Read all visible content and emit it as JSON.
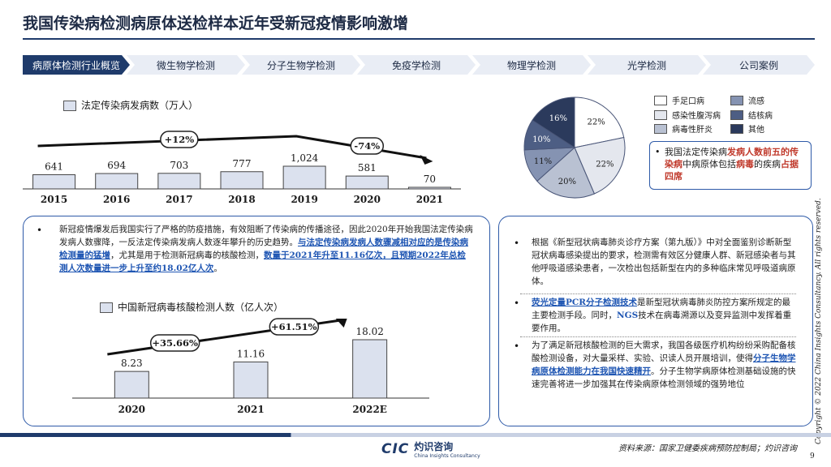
{
  "title": "我国传染病检测病原体送检样本近年受新冠疫情影响激增",
  "tabs": [
    {
      "label": "病原体检测行业概览",
      "active": true
    },
    {
      "label": "微生物学检测",
      "active": false
    },
    {
      "label": "分子生物学检测",
      "active": false
    },
    {
      "label": "免疫学检测",
      "active": false
    },
    {
      "label": "物理学检测",
      "active": false
    },
    {
      "label": "光学检测",
      "active": false
    },
    {
      "label": "公司案例",
      "active": false
    }
  ],
  "colors": {
    "accent": "#1f3b6b",
    "bar_fill": "#dbe1ee",
    "highlight": "#1f56b3",
    "card_border": "#2e5aa8"
  },
  "chart_data": [
    {
      "type": "bar",
      "legend": "法定传染病发病数（万人）",
      "categories": [
        "2015",
        "2016",
        "2017",
        "2018",
        "2019",
        "2020",
        "2021"
      ],
      "values": [
        641,
        694,
        703,
        777,
        1024,
        581,
        70
      ],
      "value_labels": [
        "641",
        "694",
        "703",
        "777",
        "1,024",
        "581",
        "70"
      ],
      "annotations": [
        "+12%",
        "-74%"
      ]
    },
    {
      "type": "bar",
      "legend": "中国新冠病毒核酸检测人数（亿人次）",
      "categories": [
        "2020",
        "2021",
        "2022E"
      ],
      "values": [
        8.23,
        11.16,
        18.02
      ],
      "value_labels": [
        "8.23",
        "11.16",
        "18.02"
      ],
      "annotations": [
        "+35.66%",
        "+61.51%"
      ]
    },
    {
      "type": "pie",
      "slices": [
        {
          "label": "手足口病",
          "value": 22,
          "color": "#ffffff"
        },
        {
          "label": "感染性腹泻病",
          "value": 22,
          "color": "#e4e7ee"
        },
        {
          "label": "病毒性肝炎",
          "value": 20,
          "color": "#b9c1d2"
        },
        {
          "label": "流感",
          "value": 11,
          "color": "#8593b2"
        },
        {
          "label": "结核病",
          "value": 10,
          "color": "#4d5e84"
        },
        {
          "label": "其他",
          "value": 16,
          "color": "#2b3a5c"
        }
      ],
      "slice_labels": [
        "22%",
        "22%",
        "20%",
        "11%",
        "10%",
        "16%"
      ]
    }
  ],
  "pie_note": {
    "a": "我国法定传染病",
    "b": "发病人数前五的传染病",
    "c": "中病原体包括",
    "d": "病毒",
    "e": "的疾病",
    "f": "占据四席"
  },
  "left_card": {
    "p1": "新冠疫情爆发后我国实行了严格的防疫措施，有效阻断了传染病的传播途径，因此2020年开始我国法定传染病发病人数骤降，一反法定传染病发病人数逐年攀升的历史趋势。",
    "p1_hl": "与法定传染病发病人数骤减相对应的是传染病检测量的猛增",
    "p1_b": "，尤其是用于检测新冠病毒的核酸检测，",
    "p1_hl2": "数量于2021年升至11.16亿次，且预期2022年总检测人次数量进一步上升至约18.02亿人次",
    "p1_end": "。"
  },
  "right_card": {
    "b1": "根据《新型冠状病毒肺炎诊疗方案（第九版）》中对全面鉴别诊断新型冠状病毒感染提出的要求，检测需有效区分健康人群、新冠感染者与其他呼吸道感染患者，一次检出包括新型在内的多种临床常见呼吸道病原体。",
    "b2_hl": "荧光定量PCR分子检测技术",
    "b2_a": "是新型冠状病毒肺炎防控方案所规定的最主要检测手段。同时，",
    "b2_hl2": "NGS",
    "b2_b": "技术在病毒溯源以及变异监测中发挥着重要作用。",
    "b3_a": "为了满足新冠核酸检测的巨大需求，我国各级医疗机构纷纷采购配备核酸检测设备，对大量采样、实验、识读人员开展培训，使得",
    "b3_hl": "分子生物学病原体检测能力在我国快速精开",
    "b3_b": "。分子生物学病原体检测基础设施的快速完善将进一步加强其在传染病原体检测领域的强势地位"
  },
  "source": "资料来源：国家卫健委疾病预防控制局；灼识咨询",
  "page_number": "9",
  "copyright": "Copyright © 2022 China Insights Consultancy. All rights reserved.",
  "logo": {
    "mark": "CIC",
    "name": "灼识咨询",
    "sub": "China Insights Consultancy"
  }
}
